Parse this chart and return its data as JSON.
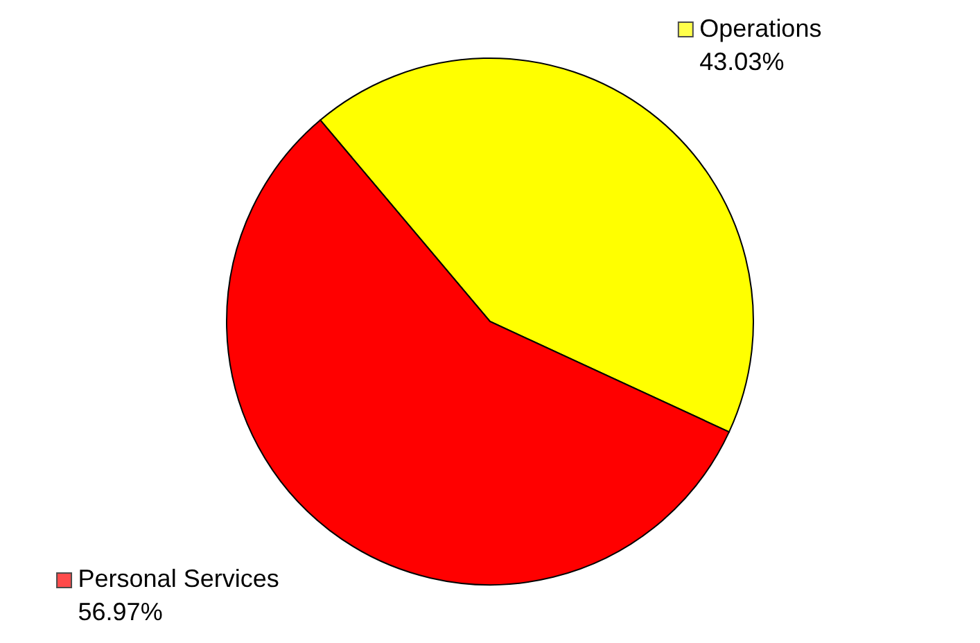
{
  "chart_data": {
    "type": "pie",
    "categories": [
      "Operations",
      "Personal Services"
    ],
    "values": [
      43.03,
      56.97
    ],
    "colors": [
      "#ffff00",
      "#ff0000"
    ],
    "value_labels": [
      "43.03%",
      "56.97%"
    ],
    "legend": "top left"
  }
}
